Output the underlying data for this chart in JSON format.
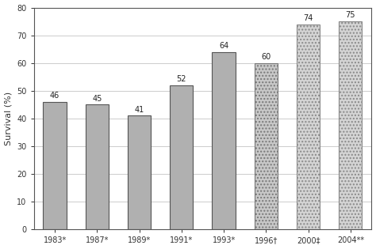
{
  "categories": [
    "1983*",
    "1987*",
    "1989*",
    "1991*",
    "1993*",
    "1996†",
    "2000‡",
    "2004**"
  ],
  "values": [
    46,
    45,
    41,
    52,
    64,
    60,
    74,
    75
  ],
  "bar_colors": [
    "#b0b0b0",
    "#b0b0b0",
    "#b0b0b0",
    "#b0b0b0",
    "#b0b0b0",
    "#c8c8c8",
    "#d4d4d4",
    "#d4d4d4"
  ],
  "edge_colors": [
    "#555555",
    "#555555",
    "#555555",
    "#555555",
    "#555555",
    "#777777",
    "#888888",
    "#888888"
  ],
  "hatch": [
    "",
    "",
    "",
    "",
    "",
    "....",
    "....",
    "...."
  ],
  "ylabel": "Survival (%)",
  "ylim": [
    0,
    80
  ],
  "yticks": [
    0,
    10,
    20,
    30,
    40,
    50,
    60,
    70,
    80
  ],
  "label_fontsize": 8,
  "tick_fontsize": 7,
  "value_fontsize": 7,
  "background_color": "#ffffff",
  "grid_color": "#cccccc",
  "bar_width": 0.55
}
